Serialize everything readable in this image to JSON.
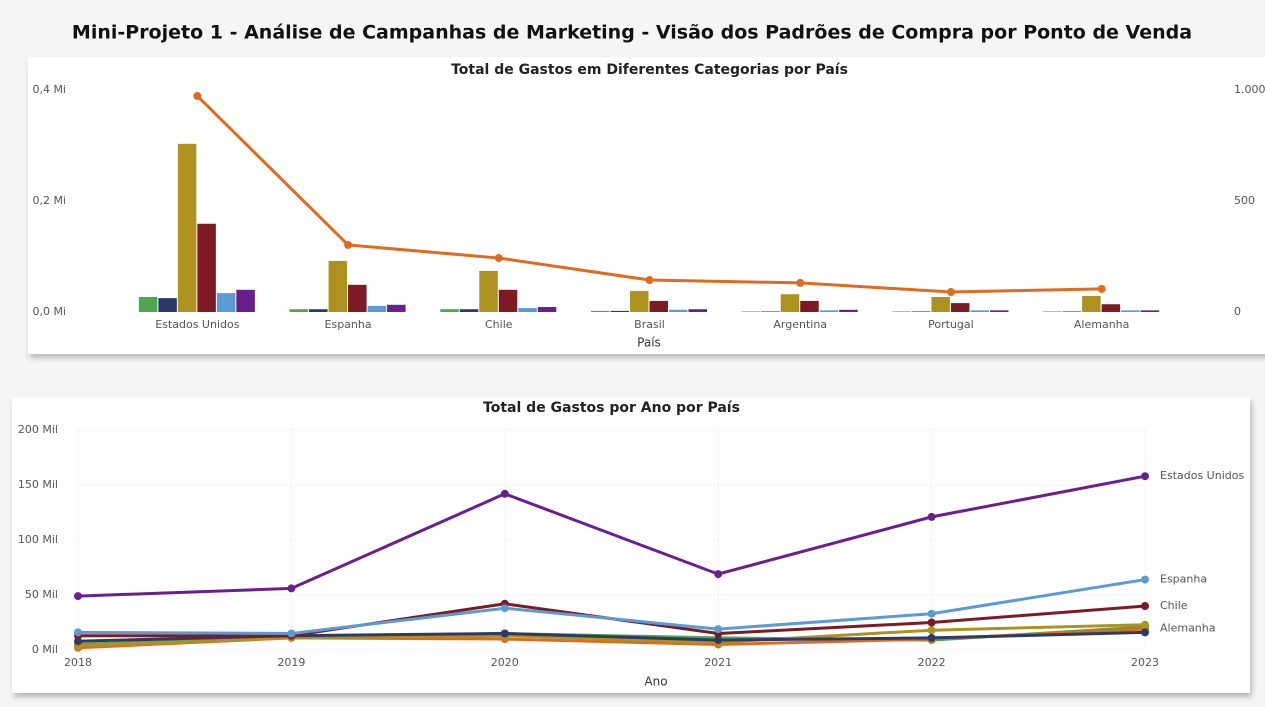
{
  "title": "Mini-Projeto 1 - Análise de Campanhas de Marketing - Visão dos Padrões de Compra por Ponto de Venda",
  "chart_data": [
    {
      "type": "bar",
      "title": "Total de Gastos em Diferentes Categorias por País",
      "x_label": "País",
      "categories": [
        "Estados Unidos",
        "Espanha",
        "Chile",
        "Brasil",
        "Argentina",
        "Portugal",
        "Alemanha"
      ],
      "series": [
        {
          "color": "#4ea74a",
          "values": [
            0.027,
            0.005,
            0.005,
            0.002,
            0.001,
            0.001,
            0.001
          ]
        },
        {
          "color": "#2b3a67",
          "values": [
            0.025,
            0.005,
            0.005,
            0.002,
            0.001,
            0.001,
            0.001
          ]
        },
        {
          "color": "#ad9220",
          "values": [
            0.303,
            0.092,
            0.074,
            0.038,
            0.032,
            0.027,
            0.029
          ]
        },
        {
          "color": "#7d1b24",
          "values": [
            0.159,
            0.049,
            0.04,
            0.02,
            0.02,
            0.016,
            0.014
          ]
        },
        {
          "color": "#5b9bd5",
          "values": [
            0.034,
            0.011,
            0.007,
            0.004,
            0.003,
            0.003,
            0.003
          ]
        },
        {
          "color": "#6a1f8f",
          "values": [
            0.04,
            0.013,
            0.009,
            0.005,
            0.004,
            0.003,
            0.003
          ]
        },
        {
          "color": "#e06b1f",
          "axis": "y2",
          "values": [
            973,
            302,
            243,
            144,
            131,
            90,
            104
          ]
        }
      ],
      "ylim": [
        0,
        0.4
      ],
      "yticks": [
        {
          "value": 0,
          "label": "0,0 Mi"
        },
        {
          "value": 0.2,
          "label": "0,2 Mi"
        },
        {
          "value": 0.4,
          "label": "0,4 Mi"
        }
      ],
      "y2lim": [
        0,
        1000
      ],
      "y2ticks": [
        0,
        500,
        {
          "value": 1000,
          "label": "1.000"
        }
      ],
      "grid": false
    },
    {
      "type": "line",
      "title": "Total de Gastos por Ano por País",
      "x_label": "Ano",
      "x": [
        2018,
        2019,
        2020,
        2021,
        2022,
        2023
      ],
      "xlim": [
        2018,
        2023
      ],
      "xticks": [
        2018,
        2019,
        2020,
        2021,
        2022,
        2023
      ],
      "series": [
        {
          "color": "#4ea74a",
          "values": [
            5,
            12,
            15,
            11,
            9,
            21
          ]
        },
        {
          "color": "#e06b1f",
          "values": [
            2,
            11,
            10,
            5,
            10,
            19
          ]
        },
        {
          "color": "#ad9220",
          "values": [
            4,
            11,
            13,
            7,
            18,
            23
          ]
        },
        {
          "name": "Alemanha",
          "color": "#2b3a67",
          "values": [
            8,
            13,
            15,
            9,
            11,
            16
          ]
        },
        {
          "name": "Chile",
          "color": "#7d1b24",
          "values": [
            13,
            13,
            42,
            15,
            25,
            40
          ]
        },
        {
          "name": "Espanha",
          "color": "#5b9bd5",
          "values": [
            16,
            15,
            38,
            19,
            33,
            64
          ]
        },
        {
          "name": "Estados Unidos",
          "color": "#6a1f8f",
          "values": [
            49,
            56,
            142,
            69,
            121,
            158
          ]
        }
      ],
      "ylim": [
        0,
        200
      ],
      "yticks": [
        {
          "value": 0,
          "label": "0 Mil"
        },
        {
          "value": 50,
          "label": "50 Mil"
        },
        {
          "value": 100,
          "label": "100 Mil"
        },
        {
          "value": 150,
          "label": "150 Mil"
        },
        {
          "value": 200,
          "label": "200 Mil"
        }
      ],
      "grid": true
    }
  ]
}
